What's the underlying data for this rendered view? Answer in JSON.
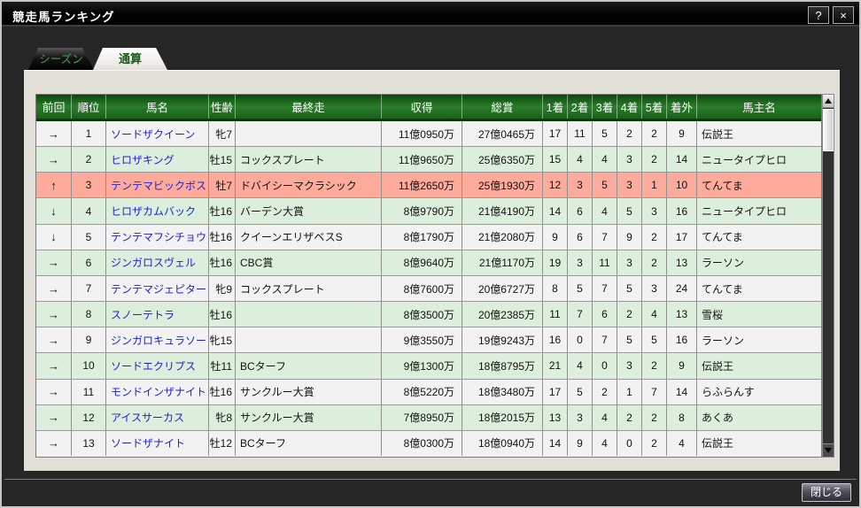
{
  "window": {
    "title": "競走馬ランキング",
    "help_label": "?",
    "close_label": "×"
  },
  "tabs": [
    {
      "label": "シーズン",
      "active": false
    },
    {
      "label": "通算",
      "active": true
    }
  ],
  "table": {
    "columns": [
      "前回",
      "順位",
      "馬名",
      "性齢",
      "最終走",
      "収得",
      "総賞",
      "1着",
      "2着",
      "3着",
      "4着",
      "5着",
      "着外",
      "馬主名"
    ],
    "rows": [
      {
        "bg": "plain",
        "cells": [
          "→",
          "1",
          "ソードザクイーン",
          "牝7",
          "",
          "11億0950万",
          "27億0465万",
          "17",
          "11",
          "5",
          "2",
          "2",
          "9",
          "伝説王"
        ]
      },
      {
        "bg": "green",
        "cells": [
          "→",
          "2",
          "ヒロザキング",
          "牡15",
          "コックスプレート",
          "11億9650万",
          "25億6350万",
          "15",
          "4",
          "4",
          "3",
          "2",
          "14",
          "ニュータイプヒロ"
        ]
      },
      {
        "bg": "pink",
        "cells": [
          "↑",
          "3",
          "テンテマビックボス",
          "牡7",
          "ドバイシーマクラシック",
          "11億2650万",
          "25億1930万",
          "12",
          "3",
          "5",
          "3",
          "1",
          "10",
          "てんてま"
        ]
      },
      {
        "bg": "green",
        "cells": [
          "↓",
          "4",
          "ヒロザカムバック",
          "牡16",
          "バーデン大賞",
          "8億9790万",
          "21億4190万",
          "14",
          "6",
          "4",
          "5",
          "3",
          "16",
          "ニュータイプヒロ"
        ]
      },
      {
        "bg": "plain",
        "cells": [
          "↓",
          "5",
          "テンテマフシチョウ",
          "牡16",
          "クイーンエリザベスS",
          "8億1790万",
          "21億2080万",
          "9",
          "6",
          "7",
          "9",
          "2",
          "17",
          "てんてま"
        ]
      },
      {
        "bg": "green",
        "cells": [
          "→",
          "6",
          "ジンガロスヴェル",
          "牡16",
          "CBC賞",
          "8億9640万",
          "21億1170万",
          "19",
          "3",
          "11",
          "3",
          "2",
          "13",
          "ラーソン"
        ]
      },
      {
        "bg": "plain",
        "cells": [
          "→",
          "7",
          "テンテマジェピター",
          "牝9",
          "コックスプレート",
          "8億7600万",
          "20億6727万",
          "8",
          "5",
          "7",
          "5",
          "3",
          "24",
          "てんてま"
        ]
      },
      {
        "bg": "green",
        "cells": [
          "→",
          "8",
          "スノーテトラ",
          "牡16",
          "",
          "8億3500万",
          "20億2385万",
          "11",
          "7",
          "6",
          "2",
          "4",
          "13",
          "雪桜"
        ]
      },
      {
        "bg": "plain",
        "cells": [
          "→",
          "9",
          "ジンガロキュラソー",
          "牝15",
          "",
          "9億3550万",
          "19億9243万",
          "16",
          "0",
          "7",
          "5",
          "5",
          "16",
          "ラーソン"
        ]
      },
      {
        "bg": "green",
        "cells": [
          "→",
          "10",
          "ソードエクリプス",
          "牡11",
          "BCターフ",
          "9億1300万",
          "18億8795万",
          "21",
          "4",
          "0",
          "3",
          "2",
          "9",
          "伝説王"
        ]
      },
      {
        "bg": "plain",
        "cells": [
          "→",
          "11",
          "モンドインザナイト",
          "牡16",
          "サンクルー大賞",
          "8億5220万",
          "18億3480万",
          "17",
          "5",
          "2",
          "1",
          "7",
          "14",
          "らふらんす"
        ]
      },
      {
        "bg": "green",
        "cells": [
          "→",
          "12",
          "アイスサーカス",
          "牝8",
          "サンクルー大賞",
          "7億8950万",
          "18億2015万",
          "13",
          "3",
          "4",
          "2",
          "2",
          "8",
          "あくあ"
        ]
      },
      {
        "bg": "plain",
        "cells": [
          "→",
          "13",
          "ソードザナイト",
          "牡12",
          "BCターフ",
          "8億0300万",
          "18億0940万",
          "14",
          "9",
          "4",
          "0",
          "2",
          "4",
          "伝説王"
        ]
      }
    ]
  },
  "footer": {
    "close_button": "閉じる"
  },
  "colors": {
    "header_green": "#2a7d2a",
    "row_green": "#dcefdc",
    "row_highlight_pink": "#ffab9b",
    "horse_name_blue": "#1f1fd0",
    "panel_beige": "#e2ded8",
    "active_tab_text": "#155c15",
    "inactive_tab_text": "#4e9e4e"
  }
}
